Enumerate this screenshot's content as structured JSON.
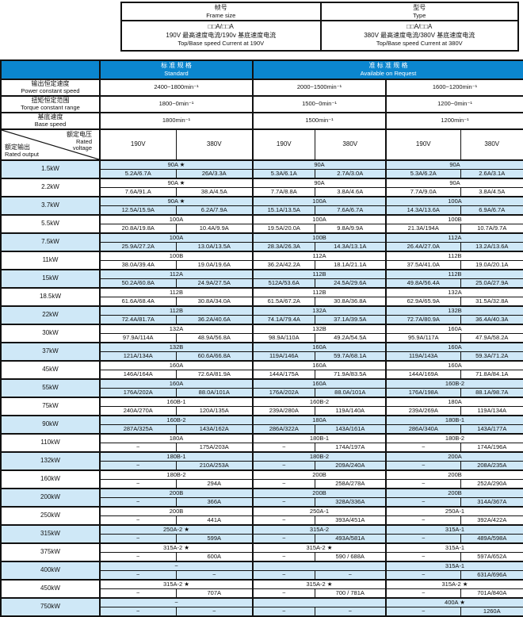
{
  "colors": {
    "header_blue": "#0b86cf",
    "row_highlight": "#cfe8f7",
    "border": "#111111",
    "header_text": "#ffffff"
  },
  "top_boxes": [
    {
      "title_cn": "帧号",
      "title_en": "Frame size",
      "pattern": "□□A/□□A",
      "line_cn": "190V 最高速度电流/190v 基底速度电流",
      "line_en": "Top/Base speed Current at 190V"
    },
    {
      "title_cn": "型号",
      "title_en": "Type",
      "pattern": "□□A/□□A",
      "line_cn": "380V 最高速度电流/380V 基底速度电流",
      "line_en": "Top/Base speed Current at 380V"
    }
  ],
  "header": {
    "standard_cn": "标 准 规 格",
    "standard_en": "Standard",
    "request_cn": "准 标 准 规 格",
    "request_en": "Available on Request"
  },
  "spec_rows": [
    {
      "label_cn": "输出恒定速度",
      "label_en": "Power constant speed",
      "values": [
        "2400~1800min⁻¹",
        "2000~1500min⁻¹",
        "1600~1200min⁻¹"
      ]
    },
    {
      "label_cn": "扭矩恒定范围",
      "label_en": "Torque constant range",
      "values": [
        "1800~0min⁻¹",
        "1500~0min⁻¹",
        "1200~0min⁻¹"
      ]
    },
    {
      "label_cn": "基底速度",
      "label_en": "Base speed",
      "values": [
        "1800min⁻¹",
        "1500min⁻¹",
        "1200min⁻¹"
      ]
    }
  ],
  "voltage_row": {
    "corner_top_cn": "额定电压",
    "corner_top_en": "Rated voltage",
    "corner_bottom_cn": "额定输出",
    "corner_bottom_en": "Rated output",
    "columns": [
      "190V",
      "380V",
      "190V",
      "380V",
      "190V",
      "380V"
    ]
  },
  "table": {
    "rows": [
      {
        "power": "1.5kW",
        "frames": [
          "90A ★",
          "90A",
          "90A"
        ],
        "currents": [
          "5.2A/6.7A",
          "26A/3.3A",
          "5.3A/6.1A",
          "2.7A/3.0A",
          "5.3A/6.2A",
          "2.6A/3.1A"
        ]
      },
      {
        "power": "2.2kW",
        "frames": [
          "90A ★",
          "90A",
          "90A"
        ],
        "currents": [
          "7.6A/91.A",
          "38.A/4.5A",
          "7.7A/8.8A",
          "3.8A/4.6A",
          "7.7A/9.0A",
          "3.8A/4.5A"
        ]
      },
      {
        "power": "3.7kW",
        "frames": [
          "90A ★",
          "100A",
          "100A"
        ],
        "currents": [
          "12.5A/15.9A",
          "6.2A/7.9A",
          "15.1A/13.5A",
          "7.6A/6.7A",
          "14.3A/13.6A",
          "6.9A/6.7A"
        ]
      },
      {
        "power": "5.5kW",
        "frames": [
          "100A",
          "100A",
          "100B"
        ],
        "currents": [
          "20.8A/19.8A",
          "10.4A/9.9A",
          "19.5A/20.0A",
          "9.8A/9.9A",
          "21.3A/194A",
          "10.7A/9.7A"
        ]
      },
      {
        "power": "7.5kW",
        "frames": [
          "100A",
          "100B",
          "112A"
        ],
        "currents": [
          "25.9A/27.2A",
          "13.0A/13.5A",
          "28.3A/26.3A",
          "14.3A/13.1A",
          "26.4A/27.0A",
          "13.2A/13.6A"
        ]
      },
      {
        "power": "11kW",
        "frames": [
          "100B",
          "112A",
          "112B"
        ],
        "currents": [
          "38.0A/39.4A",
          "19.0A/19.6A",
          "36.2A/42.2A",
          "18.1A/21.1A",
          "37.5A/41.0A",
          "19.0A/20.1A"
        ]
      },
      {
        "power": "15kW",
        "frames": [
          "112A",
          "112B",
          "112B"
        ],
        "currents": [
          "50.2A/60.8A",
          "24.9A/27.5A",
          "512A/53.6A",
          "24.5A/29.6A",
          "49.8A/56.4A",
          "25.0A/27.9A"
        ]
      },
      {
        "power": "18.5kW",
        "frames": [
          "112B",
          "112B",
          "132A"
        ],
        "currents": [
          "61.6A/68.4A",
          "30.8A/34.0A",
          "61.5A/67.2A",
          "30.8A/36.8A",
          "62.9A/65.9A",
          "31.5A/32.8A"
        ]
      },
      {
        "power": "22kW",
        "frames": [
          "112B",
          "132A",
          "132B"
        ],
        "currents": [
          "72.4A/81.7A",
          "36.2A/40.6A",
          "74.1A/79.4A",
          "37.1A/39.5A",
          "72.7A/80.9A",
          "36.4A/40.3A"
        ]
      },
      {
        "power": "30kW",
        "frames": [
          "132A",
          "132B",
          "160A"
        ],
        "currents": [
          "97.9A/114A",
          "48.9A/56.8A",
          "98.9A/110A",
          "49.2A/54.5A",
          "95.9A/117A",
          "47.9A/58.2A"
        ]
      },
      {
        "power": "37kW",
        "frames": [
          "132B",
          "160A",
          "160A"
        ],
        "currents": [
          "121A/134A",
          "60.6A/66.8A",
          "119A/146A",
          "59.7A/68.1A",
          "119A/143A",
          "59.3A/71.2A"
        ]
      },
      {
        "power": "45kW",
        "frames": [
          "160A",
          "160A",
          "160A"
        ],
        "currents": [
          "146A/164A",
          "72.6A/81.9A",
          "144A/175A",
          "71.9A/83.5A",
          "144A/169A",
          "71.8A/84.1A"
        ]
      },
      {
        "power": "55kW",
        "frames": [
          "160A",
          "160A",
          "160B-2"
        ],
        "currents": [
          "176A/202A",
          "88.0A/101A",
          "176A/202A",
          "88.0A/101A",
          "176A/198A",
          "88.1A/98.7A"
        ]
      },
      {
        "power": "75kW",
        "frames": [
          "160B-1",
          "160B-2",
          "180A"
        ],
        "currents": [
          "240A/270A",
          "120A/135A",
          "239A/280A",
          "119A/140A",
          "239A/269A",
          "119A/134A"
        ]
      },
      {
        "power": "90kW",
        "frames": [
          "160B-2",
          "180A",
          "180B-1"
        ],
        "currents": [
          "287A/325A",
          "143A/162A",
          "286A/322A",
          "143A/161A",
          "286A/340A",
          "143A/177A"
        ]
      },
      {
        "power": "110kW",
        "frames": [
          "180A",
          "180B-1",
          "180B-2"
        ],
        "currents": [
          "−",
          "175A/203A",
          "−",
          "174A/197A",
          "−",
          "174A/196A"
        ]
      },
      {
        "power": "132kW",
        "frames": [
          "180B-1",
          "180B-2",
          "200A"
        ],
        "currents": [
          "−",
          "210A/253A",
          "−",
          "209A/240A",
          "−",
          "208A/235A"
        ]
      },
      {
        "power": "160kW",
        "frames": [
          "180B-2",
          "200B",
          "200B"
        ],
        "currents": [
          "−",
          "294A",
          "−",
          "258A/278A",
          "−",
          "252A/290A"
        ]
      },
      {
        "power": "200kW",
        "frames": [
          "200B",
          "200B",
          "200B"
        ],
        "currents": [
          "−",
          "366A",
          "−",
          "328A/336A",
          "−",
          "314A/367A"
        ]
      },
      {
        "power": "250kW",
        "frames": [
          "200B",
          "250A-1",
          "250A-1"
        ],
        "currents": [
          "−",
          "441A",
          "−",
          "393A/451A",
          "−",
          "392A/422A"
        ]
      },
      {
        "power": "315kW",
        "frames": [
          "250A-2 ★",
          "315A-2",
          "315A-1"
        ],
        "currents": [
          "−",
          "599A",
          "−",
          "493A/581A",
          "−",
          "489A/598A"
        ]
      },
      {
        "power": "375kW",
        "frames": [
          "315A-2 ★",
          "315A-2 ★",
          "315A-1"
        ],
        "currents": [
          "−",
          "600A",
          "−",
          "590 / 688A",
          "−",
          "597A/652A"
        ]
      },
      {
        "power": "400kW",
        "frames": [
          "−",
          "",
          "315A-1"
        ],
        "currents": [
          "−",
          "−",
          "−",
          "−",
          "−",
          "631A/696A"
        ]
      },
      {
        "power": "450kW",
        "frames": [
          "315A-2 ★",
          "315A-2 ★",
          "315A-2 ★"
        ],
        "currents": [
          "−",
          "707A",
          "−",
          "700 / 781A",
          "−",
          "701A/840A"
        ]
      },
      {
        "power": "750kW",
        "frames": [
          "−",
          "",
          "400A ★"
        ],
        "currents": [
          "−",
          "−",
          "−",
          "−",
          "−",
          "1260A"
        ]
      }
    ]
  }
}
